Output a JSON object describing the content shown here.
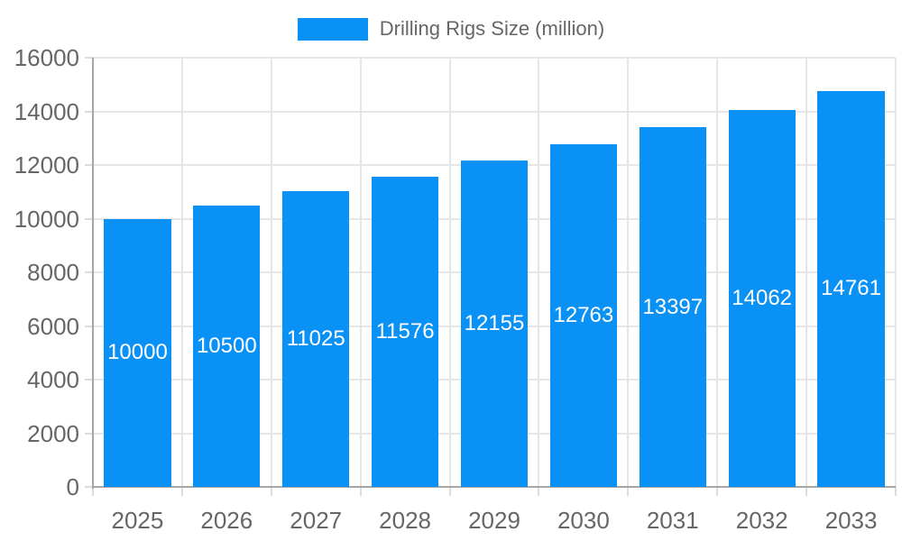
{
  "chart_data": {
    "type": "bar",
    "legend": "Drilling Rigs Size (million)",
    "legend_position": "top",
    "categories": [
      "2025",
      "2026",
      "2027",
      "2028",
      "2029",
      "2030",
      "2031",
      "2032",
      "2033"
    ],
    "series": [
      {
        "name": "Drilling Rigs Size (million)",
        "values": [
          10000,
          10500,
          11025,
          11576,
          12155,
          12763,
          13397,
          14062,
          14761
        ]
      }
    ],
    "title": "",
    "xlabel": "",
    "ylabel": "",
    "ylim": [
      0,
      16000
    ],
    "ytick_step": 2000,
    "ytick_labels": [
      "0",
      "2000",
      "4000",
      "6000",
      "8000",
      "10000",
      "12000",
      "14000",
      "16000"
    ],
    "grid": "both",
    "value_labels_shown": true,
    "colors": {
      "bar": "#0a91f5",
      "value_label": "#ffffff",
      "grid": "#e6e6e6",
      "tick": "#dcdcdc",
      "axis": "#a6a6a6",
      "label": "#666666",
      "background": "#ffffff"
    }
  }
}
